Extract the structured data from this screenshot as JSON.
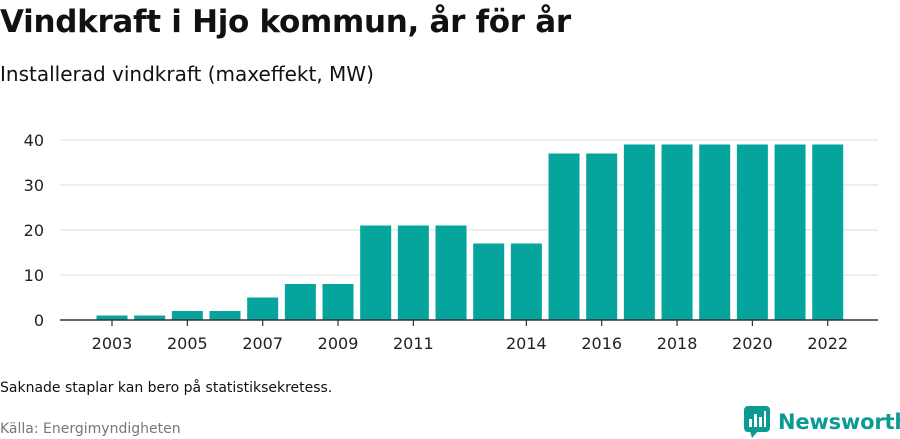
{
  "header": {
    "title": "Vindkraft i Hjo kommun, år för år",
    "subtitle": "Installerad vindkraft (maxeffekt, MW)"
  },
  "footer": {
    "note": "Saknade staplar kan bero på statistiksekretess.",
    "source": "Källa: Energimyndigheten"
  },
  "brand": {
    "name": "Newsworthy",
    "icon": "bar-chart-speech-icon",
    "color": "#0a9b92"
  },
  "chart_data": {
    "type": "bar",
    "title": "Vindkraft i Hjo kommun, år för år",
    "subtitle": "Installerad vindkraft (maxeffekt, MW)",
    "xlabel": "",
    "ylabel": "",
    "categories": [
      "2003",
      "2004",
      "2005",
      "2006",
      "2007",
      "2008",
      "2009",
      "2010",
      "2011",
      "2012",
      "2013",
      "2014",
      "2015",
      "2016",
      "2017",
      "2018",
      "2019",
      "2020",
      "2021",
      "2022"
    ],
    "values": [
      1,
      1,
      2,
      2,
      5,
      8,
      8,
      21,
      21,
      21,
      17,
      17,
      37,
      37,
      39,
      39,
      39,
      39,
      39,
      39
    ],
    "x_tick_labels": [
      "2003",
      "2005",
      "2007",
      "2009",
      "2011",
      "2014",
      "2016",
      "2018",
      "2020",
      "2022"
    ],
    "y_ticks": [
      0,
      10,
      20,
      30,
      40
    ],
    "ylim": [
      0,
      40
    ],
    "grid": true,
    "bar_color": "#05a49c"
  }
}
